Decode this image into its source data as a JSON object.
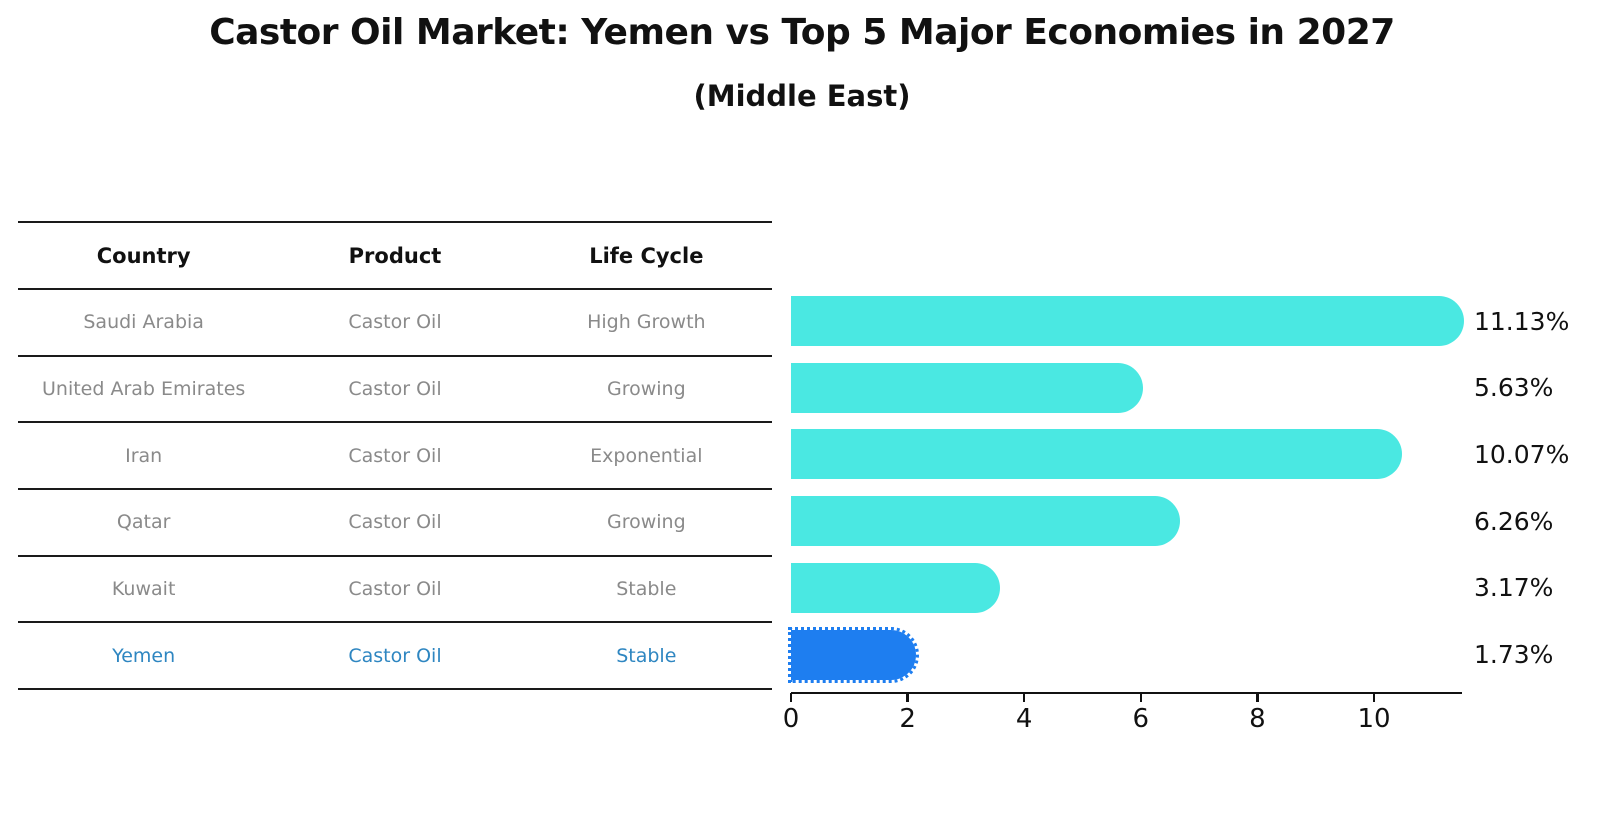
{
  "header": {
    "title": "Castor Oil Market: Yemen vs Top 5 Major Economies in 2027",
    "subtitle": "(Middle East)"
  },
  "table": {
    "headers": [
      "Country",
      "Product",
      "Life Cycle"
    ],
    "rows": [
      {
        "country": "Saudi Arabia",
        "product": "Castor Oil",
        "life_cycle": "High Growth"
      },
      {
        "country": "United Arab Emirates",
        "product": "Castor Oil",
        "life_cycle": "Growing"
      },
      {
        "country": "Iran",
        "product": "Castor Oil",
        "life_cycle": "Exponential"
      },
      {
        "country": "Qatar",
        "product": "Castor Oil",
        "life_cycle": "Growing"
      },
      {
        "country": "Kuwait",
        "product": "Castor Oil",
        "life_cycle": "Stable"
      },
      {
        "country": "Yemen",
        "product": "Castor Oil",
        "life_cycle": "Stable"
      }
    ],
    "highlight_row_index": 5
  },
  "chart_data": {
    "type": "bar",
    "orientation": "horizontal",
    "title": "Castor Oil Market: Yemen vs Top 5 Major Economies in 2027",
    "subtitle": "(Middle East)",
    "categories": [
      "Saudi Arabia",
      "United Arab Emirates",
      "Iran",
      "Qatar",
      "Kuwait",
      "Yemen"
    ],
    "values": [
      11.13,
      5.63,
      10.07,
      6.26,
      3.17,
      1.73
    ],
    "value_labels": [
      "11.13%",
      "5.63%",
      "10.07%",
      "6.26%",
      "3.17%",
      "1.73%"
    ],
    "xlabel": "",
    "ylabel": "",
    "xlim": [
      0,
      11.5
    ],
    "xticks": [
      0,
      2,
      4,
      6,
      8,
      10
    ],
    "grid": false,
    "legend": "none",
    "highlight_index": 5,
    "bar_style": {
      "rounded_end": true,
      "highlight_border": "dotted"
    },
    "colors": {
      "bar": "#4ae8e2",
      "highlight_bar": "#1e7ef0",
      "highlight_text": "#2e86c1",
      "table_text": "#8a8a8a",
      "axis": "#111111",
      "divider": "#1a1a1a"
    }
  }
}
